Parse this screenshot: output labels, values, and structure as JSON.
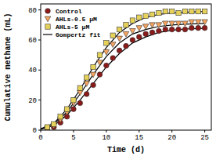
{
  "chart_data": {
    "type": "scatter",
    "x_label": "Time (d)",
    "y_label": "Cumulative methane (mL)",
    "x": [
      1,
      2,
      3,
      4,
      5,
      6,
      7,
      8,
      9,
      10,
      11,
      12,
      13,
      14,
      15,
      16,
      17,
      18,
      19,
      20,
      21,
      22,
      23,
      24,
      25
    ],
    "xlim": [
      0,
      26
    ],
    "xticks": [
      0,
      5,
      10,
      15,
      20,
      25
    ],
    "ylim": [
      0,
      84
    ],
    "yticks": [
      0,
      20,
      40,
      60,
      80
    ],
    "legend": "upper left",
    "series": [
      {
        "name": "Control",
        "type": "scatter",
        "marker": "circle",
        "color": "#8b1a1a",
        "values": [
          1,
          2,
          5,
          9,
          14,
          18,
          24,
          30,
          37,
          43,
          48,
          53,
          56,
          60,
          62,
          64,
          65,
          66,
          67,
          67,
          67,
          67,
          68,
          68,
          68
        ]
      },
      {
        "name": "AHLs-0.5 μM",
        "type": "scatter",
        "marker": "triangle-down",
        "color": "#f4a460",
        "values": [
          1,
          3,
          7,
          12,
          18,
          25,
          31,
          37,
          45,
          52,
          57,
          61,
          64,
          66,
          68,
          69,
          70,
          70,
          71,
          71,
          71,
          71,
          72,
          72,
          72
        ]
      },
      {
        "name": "AHLs-5 μM",
        "type": "scatter",
        "marker": "square",
        "color": "#e6d25a",
        "values": [
          2,
          4,
          9,
          14,
          20,
          28,
          35,
          42,
          50,
          58,
          63,
          67,
          70,
          73,
          75,
          76,
          77,
          78,
          79,
          79,
          78,
          79,
          79,
          79,
          79
        ]
      },
      {
        "name": "Gompertz fit",
        "type": "line",
        "line_style": "solid",
        "color": "#000000",
        "x": [
          0,
          2,
          4,
          6,
          8,
          10,
          12,
          14,
          16,
          18,
          20,
          22,
          25
        ],
        "values": [
          0.5,
          3,
          10,
          20,
          31,
          42,
          51,
          58,
          62,
          65,
          66.5,
          67.3,
          67.8
        ]
      },
      {
        "name": "Gompertz fit",
        "type": "line",
        "line_style": "solid",
        "color": "#000000",
        "x": [
          0,
          2,
          4,
          6,
          8,
          10,
          12,
          14,
          16,
          18,
          20,
          22,
          25
        ],
        "values": [
          0.8,
          4,
          12,
          24,
          37,
          49,
          58,
          64,
          67,
          69,
          70,
          70.5,
          71
        ]
      },
      {
        "name": "Gompertz fit",
        "type": "line",
        "line_style": "solid",
        "color": "#000000",
        "x": [
          0,
          2,
          4,
          6,
          8,
          10,
          12,
          14,
          16,
          18,
          20,
          22,
          25
        ],
        "values": [
          0.8,
          4.5,
          14,
          27,
          42,
          55,
          65,
          71,
          75,
          77,
          78,
          78.5,
          79
        ]
      }
    ]
  }
}
